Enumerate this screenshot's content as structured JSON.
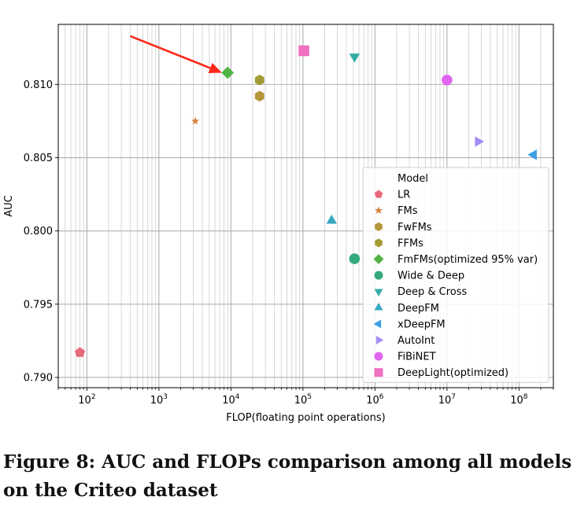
{
  "chart_data": {
    "type": "scatter",
    "x_scale": "log",
    "xlabel": "FLOP(floating point operations)",
    "ylabel": "AUC",
    "xlim": [
      40,
      300000000
    ],
    "ylim": [
      0.7893,
      0.8141
    ],
    "x_tick_labels": [
      {
        "value": 100,
        "base": "10",
        "exp": "2"
      },
      {
        "value": 1000,
        "base": "10",
        "exp": "3"
      },
      {
        "value": 10000,
        "base": "10",
        "exp": "4"
      },
      {
        "value": 100000,
        "base": "10",
        "exp": "5"
      },
      {
        "value": 1000000,
        "base": "10",
        "exp": "6"
      },
      {
        "value": 10000000,
        "base": "10",
        "exp": "7"
      },
      {
        "value": 100000000,
        "base": "10",
        "exp": "8"
      }
    ],
    "y_tick_labels": [
      {
        "value": 0.79,
        "label": "0.790"
      },
      {
        "value": 0.795,
        "label": "0.795"
      },
      {
        "value": 0.8,
        "label": "0.800"
      },
      {
        "value": 0.805,
        "label": "0.805"
      },
      {
        "value": 0.81,
        "label": "0.810"
      }
    ],
    "grid": true,
    "legend_title": "Model",
    "legend_position": "lower-right",
    "series": [
      {
        "name": "LR",
        "marker": "pentagon",
        "color": "#e8697a",
        "points": [
          {
            "x": 80,
            "y": 0.7917
          }
        ]
      },
      {
        "name": "FMs",
        "marker": "star",
        "color": "#d9843c",
        "points": [
          {
            "x": 3200,
            "y": 0.8075
          }
        ]
      },
      {
        "name": "FwFMs",
        "marker": "hexagon",
        "color": "#b5963a",
        "points": [
          {
            "x": 25000,
            "y": 0.8092
          }
        ]
      },
      {
        "name": "FFMs",
        "marker": "hexagon",
        "color": "#a29a33",
        "points": [
          {
            "x": 25000,
            "y": 0.8103
          }
        ]
      },
      {
        "name": "FmFMs(optimized 95% var)",
        "marker": "diamond",
        "color": "#51b345",
        "points": [
          {
            "x": 9000,
            "y": 0.8108
          }
        ]
      },
      {
        "name": "Wide & Deep",
        "marker": "circle",
        "color": "#33aa7c",
        "points": [
          {
            "x": 520000,
            "y": 0.7981
          }
        ]
      },
      {
        "name": "Deep & Cross",
        "marker": "triangle-down",
        "color": "#36ada4",
        "points": [
          {
            "x": 520000,
            "y": 0.8119
          }
        ]
      },
      {
        "name": "DeepFM",
        "marker": "triangle-up",
        "color": "#38a9c3",
        "points": [
          {
            "x": 250000,
            "y": 0.8007
          }
        ]
      },
      {
        "name": "xDeepFM",
        "marker": "triangle-left",
        "color": "#3c9ee4",
        "points": [
          {
            "x": 160000000,
            "y": 0.8052
          }
        ]
      },
      {
        "name": "AutoInt",
        "marker": "triangle-right",
        "color": "#a48cf4",
        "points": [
          {
            "x": 27000000,
            "y": 0.8061
          }
        ]
      },
      {
        "name": "FiBiNET",
        "marker": "circle",
        "color": "#e165f0",
        "points": [
          {
            "x": 10000000,
            "y": 0.8103
          }
        ]
      },
      {
        "name": "DeepLight(optimized)",
        "marker": "square",
        "color": "#f06fc3",
        "points": [
          {
            "x": 103000,
            "y": 0.8123
          }
        ]
      }
    ],
    "annotation": {
      "type": "arrow",
      "color": "#ff2a1a",
      "from": {
        "x": 400,
        "y": 0.8133
      },
      "to": {
        "x": 7500,
        "y": 0.8108
      }
    }
  },
  "caption": "Figure 8: AUC and FLOPs comparison among all models on the Criteo dataset"
}
